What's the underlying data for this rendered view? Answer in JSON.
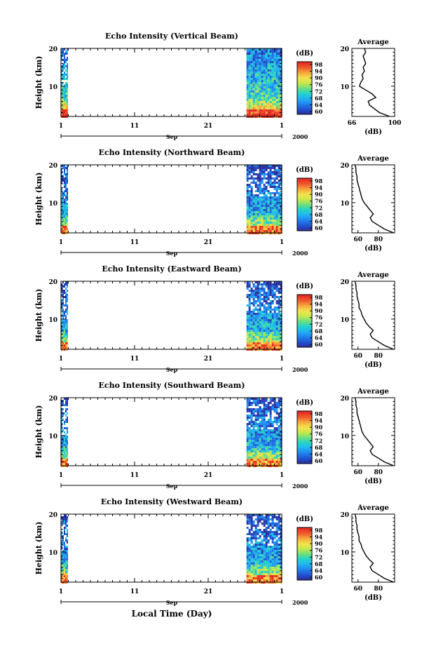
{
  "figure": {
    "xlabel": "Local Time (Day)",
    "ylabel": "Height (km)",
    "month_label": "Sep",
    "year_label": "2000",
    "x_ticks": [
      "1",
      "11",
      "21",
      "1"
    ],
    "y_ticks": [
      "20",
      "10"
    ],
    "colorbar_unit": "(dB)",
    "colorbar_ticks": [
      "98",
      "94",
      "90",
      "76",
      "72",
      "68",
      "64",
      "60"
    ],
    "colormap": [
      "#2a2fa0",
      "#1f57d6",
      "#1f86f0",
      "#1fb6f2",
      "#22d4c8",
      "#6fe07a",
      "#c8e84a",
      "#f3e34a",
      "#f5a83b",
      "#f05a2c",
      "#e62a22"
    ],
    "profile_title": "Average",
    "profile_xlabel": "(dB)"
  },
  "chart_data": [
    {
      "type": "heatmap",
      "title": "Echo Intensity (Vertical Beam)",
      "xlabel": "",
      "ylabel": "Height (km)",
      "ylim": [
        2,
        20
      ],
      "colorbar_range": [
        60,
        98
      ],
      "observation_periods_day": [
        [
          1,
          1.8
        ],
        [
          26.2,
          31
        ]
      ],
      "average_profile": {
        "title": "Average",
        "xlabel": "(dB)",
        "x_ticks": [
          "66",
          "100"
        ],
        "xlim": [
          66,
          100
        ],
        "heights_km": [
          2,
          3,
          4,
          5,
          6,
          7,
          8,
          9,
          10,
          11,
          12,
          13,
          14,
          15,
          16,
          17,
          18,
          19,
          20
        ],
        "values_db": [
          96,
          88,
          84,
          80,
          79,
          85,
          82,
          77,
          72,
          73,
          75,
          74,
          76,
          75,
          77,
          76,
          75,
          77,
          76
        ]
      }
    },
    {
      "type": "heatmap",
      "title": "Echo Intensity (Northward Beam)",
      "xlabel": "",
      "ylabel": "Height (km)",
      "ylim": [
        2,
        20
      ],
      "colorbar_range": [
        60,
        98
      ],
      "observation_periods_day": [
        [
          1,
          1.8
        ],
        [
          26.2,
          31
        ]
      ],
      "average_profile": {
        "title": "Average",
        "xlabel": "(dB)",
        "x_ticks": [
          "60",
          "80"
        ],
        "xlim": [
          54,
          96
        ],
        "heights_km": [
          2,
          3,
          4,
          5,
          6,
          7,
          8,
          9,
          10,
          11,
          12,
          13,
          14,
          15,
          16,
          17,
          18,
          19,
          20
        ],
        "values_db": [
          95,
          86,
          80,
          74,
          72,
          75,
          72,
          69,
          66,
          64,
          63,
          62,
          61,
          60,
          59,
          59,
          58,
          58,
          57
        ]
      }
    },
    {
      "type": "heatmap",
      "title": "Echo Intensity (Eastward Beam)",
      "xlabel": "",
      "ylabel": "Height (km)",
      "ylim": [
        2,
        20
      ],
      "colorbar_range": [
        60,
        98
      ],
      "observation_periods_day": [
        [
          1,
          1.8
        ],
        [
          26.2,
          31
        ]
      ],
      "average_profile": {
        "title": "Average",
        "xlabel": "(dB)",
        "x_ticks": [
          "60",
          "80"
        ],
        "xlim": [
          54,
          96
        ],
        "heights_km": [
          2,
          3,
          4,
          5,
          6,
          7,
          8,
          9,
          10,
          11,
          12,
          13,
          14,
          15,
          16,
          17,
          18,
          19,
          20
        ],
        "values_db": [
          95,
          86,
          80,
          74,
          72,
          75,
          71,
          68,
          66,
          64,
          63,
          61,
          61,
          60,
          59,
          59,
          58,
          58,
          57
        ]
      }
    },
    {
      "type": "heatmap",
      "title": "Echo Intensity (Southward Beam)",
      "xlabel": "",
      "ylabel": "Height (km)",
      "ylim": [
        2,
        20
      ],
      "colorbar_range": [
        60,
        98
      ],
      "observation_periods_day": [
        [
          1,
          1.8
        ],
        [
          26.2,
          31
        ]
      ],
      "average_profile": {
        "title": "Average",
        "xlabel": "(dB)",
        "x_ticks": [
          "60",
          "80"
        ],
        "xlim": [
          54,
          96
        ],
        "heights_km": [
          2,
          3,
          4,
          5,
          6,
          7,
          8,
          9,
          10,
          11,
          12,
          13,
          14,
          15,
          16,
          17,
          18,
          19,
          20
        ],
        "values_db": [
          95,
          86,
          80,
          74,
          72,
          75,
          72,
          69,
          66,
          64,
          63,
          62,
          61,
          60,
          59,
          59,
          58,
          58,
          57
        ]
      }
    },
    {
      "type": "heatmap",
      "title": "Echo Intensity (Westward Beam)",
      "xlabel": "Local Time (Day)",
      "ylabel": "Height (km)",
      "ylim": [
        2,
        20
      ],
      "colorbar_range": [
        60,
        98
      ],
      "observation_periods_day": [
        [
          1,
          1.8
        ],
        [
          26.2,
          31
        ]
      ],
      "average_profile": {
        "title": "Average",
        "xlabel": "(dB)",
        "x_ticks": [
          "60",
          "80"
        ],
        "xlim": [
          54,
          96
        ],
        "heights_km": [
          2,
          3,
          4,
          5,
          6,
          7,
          8,
          9,
          10,
          11,
          12,
          13,
          14,
          15,
          16,
          17,
          18,
          19,
          20
        ],
        "values_db": [
          95,
          86,
          80,
          74,
          72,
          75,
          71,
          68,
          66,
          64,
          63,
          61,
          61,
          60,
          59,
          59,
          58,
          58,
          57
        ]
      }
    }
  ]
}
